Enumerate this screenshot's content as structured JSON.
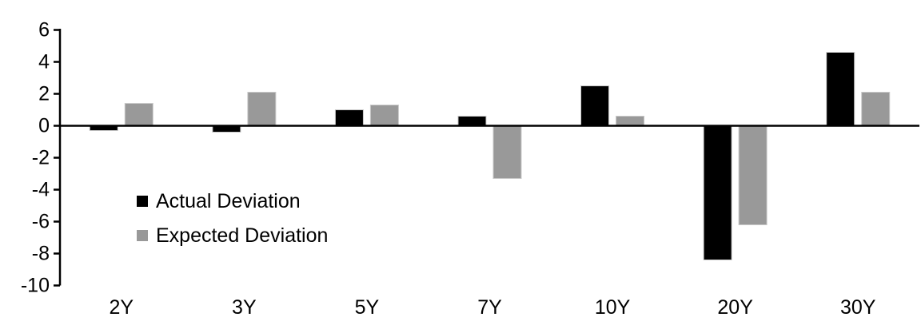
{
  "chart_data": {
    "type": "bar",
    "categories": [
      "2Y",
      "3Y",
      "5Y",
      "7Y",
      "10Y",
      "20Y",
      "30Y"
    ],
    "series": [
      {
        "name": "Actual Deviation",
        "color": "#000000",
        "values": [
          -0.3,
          -0.4,
          1.0,
          0.6,
          2.5,
          -8.4,
          4.6
        ]
      },
      {
        "name": "Expected Deviation",
        "color": "#999999",
        "values": [
          1.4,
          2.1,
          1.3,
          -3.3,
          0.6,
          -6.2,
          2.1
        ]
      }
    ],
    "title": "",
    "xlabel": "",
    "ylabel": "",
    "ylim": [
      -10,
      6
    ],
    "yticks": [
      6,
      4,
      2,
      0,
      -2,
      -4,
      -6,
      -8,
      -10
    ],
    "grid": false,
    "legend_position": "inside-left",
    "axis_color": "#000000",
    "background_color": "#ffffff",
    "bar_edge_color": "#c8c8c8"
  }
}
